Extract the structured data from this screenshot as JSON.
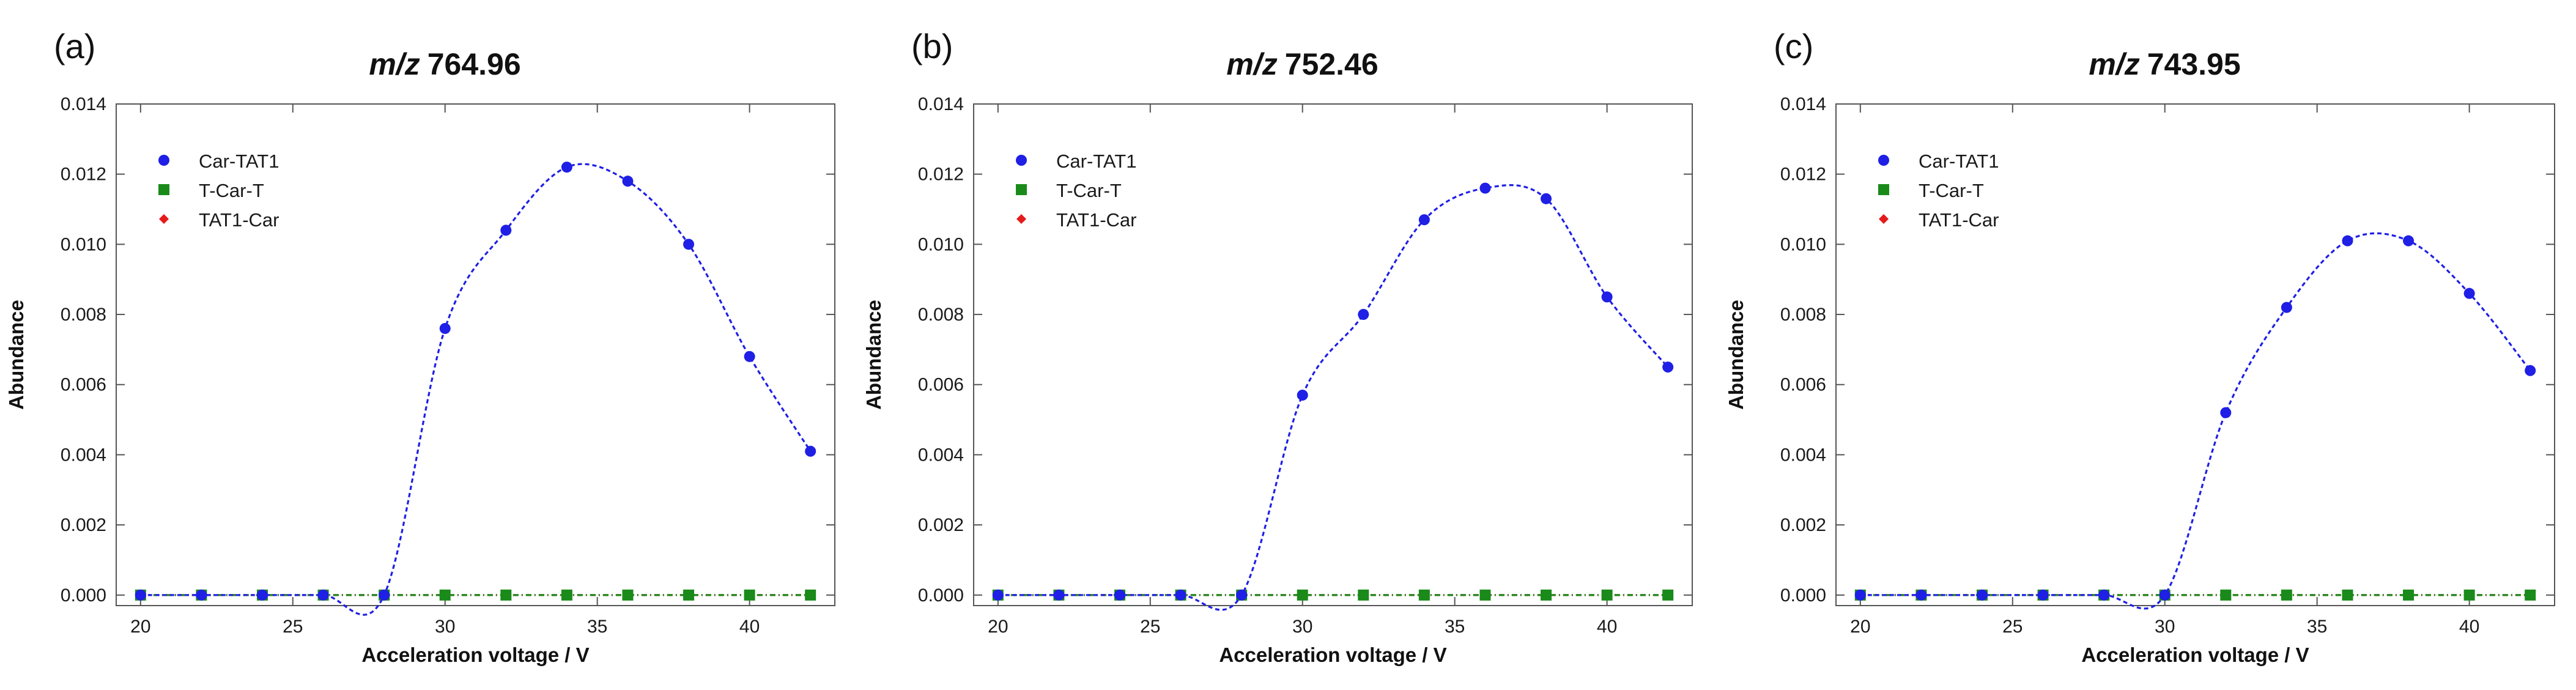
{
  "colors": {
    "series": [
      "#1f1fe6",
      "#1a8a1a",
      "#e61a1a"
    ],
    "axis": "#555555",
    "text": "#111111"
  },
  "chart_data": [
    {
      "type": "scatter",
      "panel": "(a)",
      "title_prefix": "m/z",
      "title_value": "764.96",
      "xlabel": "Acceleration voltage / V",
      "ylabel": "Abundance",
      "xlim": [
        19.2,
        42.8
      ],
      "ylim": [
        -0.0003,
        0.014
      ],
      "xticks": [
        20,
        25,
        30,
        35,
        40
      ],
      "yticks": [
        0,
        0.002,
        0.004,
        0.006,
        0.008,
        0.01,
        0.012,
        0.014
      ],
      "ytick_labels": [
        "0.000",
        "0.002",
        "0.004",
        "0.006",
        "0.008",
        "0.010",
        "0.012",
        "0.014"
      ],
      "legend_position": "top-left",
      "x": [
        20,
        22,
        24,
        26,
        28,
        30,
        32,
        34,
        36,
        38,
        40,
        42
      ],
      "series": [
        {
          "name": "Car-TAT1",
          "marker": "circle",
          "color": "#1f1fe6",
          "values": [
            0,
            0,
            0,
            0,
            0,
            0.0076,
            0.0104,
            0.0122,
            0.0118,
            0.01,
            0.0068,
            0.0041
          ]
        },
        {
          "name": "T-Car-T",
          "marker": "square",
          "color": "#1a8a1a",
          "values": [
            0,
            0,
            0,
            0,
            0,
            0,
            0,
            0,
            0,
            0,
            0,
            0
          ]
        },
        {
          "name": "TAT1-Car",
          "marker": "diamond",
          "color": "#e61a1a",
          "values": [
            0,
            0,
            0,
            0,
            0,
            0,
            0,
            0,
            0,
            0,
            0,
            0
          ]
        }
      ]
    },
    {
      "type": "scatter",
      "panel": "(b)",
      "title_prefix": "m/z",
      "title_value": "752.46",
      "xlabel": "Acceleration voltage / V",
      "ylabel": "Abundance",
      "xlim": [
        19.2,
        42.8
      ],
      "ylim": [
        -0.0003,
        0.014
      ],
      "xticks": [
        20,
        25,
        30,
        35,
        40
      ],
      "yticks": [
        0,
        0.002,
        0.004,
        0.006,
        0.008,
        0.01,
        0.012,
        0.014
      ],
      "ytick_labels": [
        "0.000",
        "0.002",
        "0.004",
        "0.006",
        "0.008",
        "0.010",
        "0.012",
        "0.014"
      ],
      "legend_position": "top-left",
      "x": [
        20,
        22,
        24,
        26,
        28,
        30,
        32,
        34,
        36,
        38,
        40,
        42
      ],
      "series": [
        {
          "name": "Car-TAT1",
          "marker": "circle",
          "color": "#1f1fe6",
          "values": [
            0,
            0,
            0,
            0,
            0,
            0.0057,
            0.008,
            0.0107,
            0.0116,
            0.0113,
            0.0085,
            0.0065
          ]
        },
        {
          "name": "T-Car-T",
          "marker": "square",
          "color": "#1a8a1a",
          "values": [
            0,
            0,
            0,
            0,
            0,
            0,
            0,
            0,
            0,
            0,
            0,
            0
          ]
        },
        {
          "name": "TAT1-Car",
          "marker": "diamond",
          "color": "#e61a1a",
          "values": [
            0,
            0,
            0,
            0,
            0,
            0,
            0,
            0,
            0,
            0,
            0,
            0
          ]
        }
      ]
    },
    {
      "type": "scatter",
      "panel": "(c)",
      "title_prefix": "m/z",
      "title_value": "743.95",
      "xlabel": "Acceleration voltage / V",
      "ylabel": "Abundance",
      "xlim": [
        19.2,
        42.8
      ],
      "ylim": [
        -0.0003,
        0.014
      ],
      "xticks": [
        20,
        25,
        30,
        35,
        40
      ],
      "yticks": [
        0,
        0.002,
        0.004,
        0.006,
        0.008,
        0.01,
        0.012,
        0.014
      ],
      "ytick_labels": [
        "0.000",
        "0.002",
        "0.004",
        "0.006",
        "0.008",
        "0.010",
        "0.012",
        "0.014"
      ],
      "legend_position": "top-left",
      "x": [
        20,
        22,
        24,
        26,
        28,
        30,
        32,
        34,
        36,
        38,
        40,
        42
      ],
      "series": [
        {
          "name": "Car-TAT1",
          "marker": "circle",
          "color": "#1f1fe6",
          "values": [
            0,
            0,
            0,
            0,
            0,
            0,
            0.0052,
            0.0082,
            0.0101,
            0.0101,
            0.0086,
            0.0064
          ]
        },
        {
          "name": "T-Car-T",
          "marker": "square",
          "color": "#1a8a1a",
          "values": [
            0,
            0,
            0,
            0,
            0,
            0,
            0,
            0,
            0,
            0,
            0,
            0
          ]
        },
        {
          "name": "TAT1-Car",
          "marker": "diamond",
          "color": "#e61a1a",
          "values": [
            0,
            0,
            0,
            0,
            0,
            0,
            0,
            0,
            0,
            0,
            0,
            0
          ]
        }
      ]
    }
  ]
}
